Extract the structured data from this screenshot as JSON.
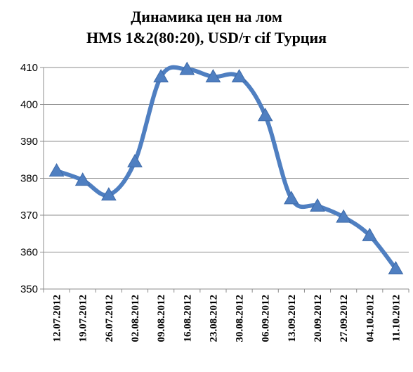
{
  "chart_data": {
    "type": "line",
    "title_line1": "Динамика цен на лом",
    "title_line2": "HMS 1&2(80:20), USD/т cif  Турция",
    "xlabel": "",
    "ylabel": "",
    "ylim": [
      350,
      410
    ],
    "yticks": [
      350,
      360,
      370,
      380,
      390,
      400,
      410
    ],
    "categories": [
      "12.07.2012",
      "19.07.2012",
      "26.07.2012",
      "02.08.2012",
      "09.08.2012",
      "16.08.2012",
      "23.08.2012",
      "30.08.2012",
      "06.09.2012",
      "13.09.2012",
      "20.09.2012",
      "27.09.2012",
      "04.10.2012",
      "11.10.2012"
    ],
    "series": [
      {
        "values": [
          382,
          379.5,
          375.5,
          384.5,
          407.5,
          409.5,
          407.5,
          407.5,
          397,
          374.5,
          372.5,
          369.5,
          364.5,
          355.5
        ]
      }
    ],
    "grid": true,
    "legend": "none",
    "line_color": "#4f7fc1",
    "marker": "triangle"
  }
}
